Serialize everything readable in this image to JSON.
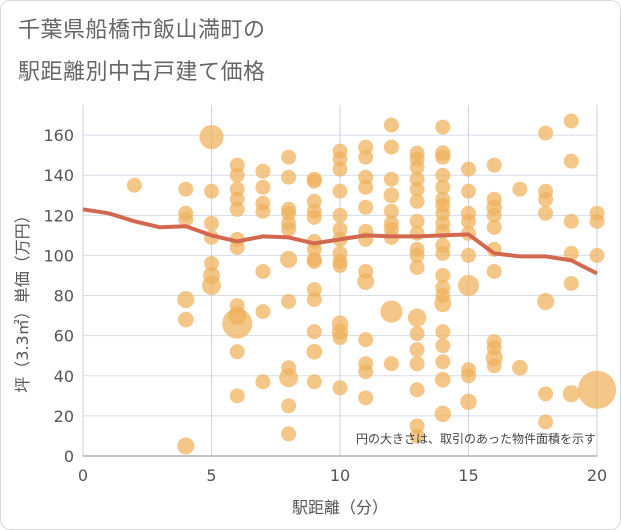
{
  "title_line1": "千葉県船橋市飯山満町の",
  "title_line2": "駅距離別中古戸建て価格",
  "chart_data": {
    "type": "scatter",
    "title": "千葉県船橋市飯山満町の駅距離別中古戸建て価格",
    "xlabel": "駅距離（分）",
    "ylabel": "坪（3.3㎡）単価（万円）",
    "xlim": [
      0,
      20
    ],
    "ylim": [
      0,
      175
    ],
    "xticks": [
      0,
      5,
      10,
      15,
      20
    ],
    "yticks": [
      0,
      20,
      40,
      60,
      80,
      100,
      120,
      140,
      160
    ],
    "grid": true,
    "note": "円の大きさは、取引のあった物件面積を示す",
    "bubble_color": "#f0b25c",
    "trend_color": "#d2694f",
    "points": [
      {
        "x": 2,
        "y": 135,
        "s": 1
      },
      {
        "x": 4,
        "y": 133,
        "s": 1
      },
      {
        "x": 4,
        "y": 121,
        "s": 1
      },
      {
        "x": 4,
        "y": 118,
        "s": 1
      },
      {
        "x": 4,
        "y": 78,
        "s": 1.3
      },
      {
        "x": 4,
        "y": 68,
        "s": 1.1
      },
      {
        "x": 4,
        "y": 5,
        "s": 1.3
      },
      {
        "x": 5,
        "y": 159,
        "s": 2.6
      },
      {
        "x": 5,
        "y": 132,
        "s": 1
      },
      {
        "x": 5,
        "y": 116,
        "s": 1
      },
      {
        "x": 5,
        "y": 109,
        "s": 1
      },
      {
        "x": 5,
        "y": 96,
        "s": 1
      },
      {
        "x": 5,
        "y": 90,
        "s": 1.3
      },
      {
        "x": 5,
        "y": 85,
        "s": 1.6
      },
      {
        "x": 6,
        "y": 145,
        "s": 1
      },
      {
        "x": 6,
        "y": 140,
        "s": 1
      },
      {
        "x": 6,
        "y": 133,
        "s": 1
      },
      {
        "x": 6,
        "y": 128,
        "s": 1
      },
      {
        "x": 6,
        "y": 123,
        "s": 1
      },
      {
        "x": 6,
        "y": 108,
        "s": 1
      },
      {
        "x": 6,
        "y": 104,
        "s": 1
      },
      {
        "x": 6,
        "y": 75,
        "s": 1
      },
      {
        "x": 6,
        "y": 70,
        "s": 1.5
      },
      {
        "x": 6,
        "y": 66,
        "s": 4.0
      },
      {
        "x": 6,
        "y": 52,
        "s": 1
      },
      {
        "x": 6,
        "y": 30,
        "s": 1
      },
      {
        "x": 7,
        "y": 142,
        "s": 1
      },
      {
        "x": 7,
        "y": 134,
        "s": 1
      },
      {
        "x": 7,
        "y": 126,
        "s": 1
      },
      {
        "x": 7,
        "y": 122,
        "s": 1
      },
      {
        "x": 7,
        "y": 92,
        "s": 1
      },
      {
        "x": 7,
        "y": 72,
        "s": 1
      },
      {
        "x": 7,
        "y": 37,
        "s": 1
      },
      {
        "x": 8,
        "y": 149,
        "s": 1
      },
      {
        "x": 8,
        "y": 139,
        "s": 1
      },
      {
        "x": 8,
        "y": 123,
        "s": 1
      },
      {
        "x": 8,
        "y": 121,
        "s": 1
      },
      {
        "x": 8,
        "y": 116,
        "s": 1
      },
      {
        "x": 8,
        "y": 113,
        "s": 1
      },
      {
        "x": 8,
        "y": 98,
        "s": 1.3
      },
      {
        "x": 8,
        "y": 77,
        "s": 1
      },
      {
        "x": 8,
        "y": 44,
        "s": 1
      },
      {
        "x": 8,
        "y": 39,
        "s": 1.6
      },
      {
        "x": 8,
        "y": 25,
        "s": 1
      },
      {
        "x": 8,
        "y": 11,
        "s": 1
      },
      {
        "x": 9,
        "y": 138,
        "s": 1
      },
      {
        "x": 9,
        "y": 137,
        "s": 1
      },
      {
        "x": 9,
        "y": 127,
        "s": 1
      },
      {
        "x": 9,
        "y": 122,
        "s": 1
      },
      {
        "x": 9,
        "y": 119,
        "s": 1
      },
      {
        "x": 9,
        "y": 107,
        "s": 1
      },
      {
        "x": 9,
        "y": 103,
        "s": 1
      },
      {
        "x": 9,
        "y": 98,
        "s": 1
      },
      {
        "x": 9,
        "y": 97,
        "s": 1
      },
      {
        "x": 9,
        "y": 83,
        "s": 1
      },
      {
        "x": 9,
        "y": 78,
        "s": 1
      },
      {
        "x": 9,
        "y": 62,
        "s": 1
      },
      {
        "x": 9,
        "y": 52,
        "s": 1.1
      },
      {
        "x": 9,
        "y": 37,
        "s": 1
      },
      {
        "x": 10,
        "y": 152,
        "s": 1
      },
      {
        "x": 10,
        "y": 148,
        "s": 1
      },
      {
        "x": 10,
        "y": 143,
        "s": 1
      },
      {
        "x": 10,
        "y": 132,
        "s": 1
      },
      {
        "x": 10,
        "y": 120,
        "s": 1
      },
      {
        "x": 10,
        "y": 113,
        "s": 1
      },
      {
        "x": 10,
        "y": 108,
        "s": 1
      },
      {
        "x": 10,
        "y": 101,
        "s": 1
      },
      {
        "x": 10,
        "y": 97,
        "s": 1
      },
      {
        "x": 10,
        "y": 95,
        "s": 1
      },
      {
        "x": 10,
        "y": 66,
        "s": 1.2
      },
      {
        "x": 10,
        "y": 62,
        "s": 1.2
      },
      {
        "x": 10,
        "y": 59,
        "s": 1
      },
      {
        "x": 10,
        "y": 34,
        "s": 1
      },
      {
        "x": 11,
        "y": 154,
        "s": 1
      },
      {
        "x": 11,
        "y": 149,
        "s": 1
      },
      {
        "x": 11,
        "y": 139,
        "s": 1
      },
      {
        "x": 11,
        "y": 134,
        "s": 1
      },
      {
        "x": 11,
        "y": 124,
        "s": 1
      },
      {
        "x": 11,
        "y": 112,
        "s": 1
      },
      {
        "x": 11,
        "y": 108,
        "s": 1
      },
      {
        "x": 11,
        "y": 92,
        "s": 1
      },
      {
        "x": 11,
        "y": 87,
        "s": 1.3
      },
      {
        "x": 11,
        "y": 58,
        "s": 1
      },
      {
        "x": 11,
        "y": 46,
        "s": 1
      },
      {
        "x": 11,
        "y": 42,
        "s": 1
      },
      {
        "x": 11,
        "y": 29,
        "s": 1
      },
      {
        "x": 12,
        "y": 165,
        "s": 1
      },
      {
        "x": 12,
        "y": 154,
        "s": 1
      },
      {
        "x": 12,
        "y": 138,
        "s": 1
      },
      {
        "x": 12,
        "y": 130,
        "s": 1.1
      },
      {
        "x": 12,
        "y": 122,
        "s": 1
      },
      {
        "x": 12,
        "y": 116,
        "s": 1
      },
      {
        "x": 12,
        "y": 113,
        "s": 1
      },
      {
        "x": 12,
        "y": 109,
        "s": 1
      },
      {
        "x": 12,
        "y": 72,
        "s": 2.2
      },
      {
        "x": 12,
        "y": 46,
        "s": 1
      },
      {
        "x": 13,
        "y": 151,
        "s": 1
      },
      {
        "x": 13,
        "y": 148,
        "s": 1
      },
      {
        "x": 13,
        "y": 144,
        "s": 1
      },
      {
        "x": 13,
        "y": 138,
        "s": 1
      },
      {
        "x": 13,
        "y": 133,
        "s": 1
      },
      {
        "x": 13,
        "y": 127,
        "s": 1
      },
      {
        "x": 13,
        "y": 117,
        "s": 1
      },
      {
        "x": 13,
        "y": 111,
        "s": 1
      },
      {
        "x": 13,
        "y": 103,
        "s": 1
      },
      {
        "x": 13,
        "y": 100,
        "s": 1
      },
      {
        "x": 13,
        "y": 94,
        "s": 1
      },
      {
        "x": 13,
        "y": 69,
        "s": 1.5
      },
      {
        "x": 13,
        "y": 61,
        "s": 1
      },
      {
        "x": 13,
        "y": 53,
        "s": 1
      },
      {
        "x": 13,
        "y": 46,
        "s": 1
      },
      {
        "x": 13,
        "y": 33,
        "s": 1
      },
      {
        "x": 13,
        "y": 15,
        "s": 1
      },
      {
        "x": 13,
        "y": 10,
        "s": 1
      },
      {
        "x": 14,
        "y": 164,
        "s": 1
      },
      {
        "x": 14,
        "y": 151,
        "s": 1.1
      },
      {
        "x": 14,
        "y": 149,
        "s": 1
      },
      {
        "x": 14,
        "y": 140,
        "s": 1
      },
      {
        "x": 14,
        "y": 134,
        "s": 1
      },
      {
        "x": 14,
        "y": 128,
        "s": 1
      },
      {
        "x": 14,
        "y": 125,
        "s": 1
      },
      {
        "x": 14,
        "y": 121,
        "s": 1
      },
      {
        "x": 14,
        "y": 116,
        "s": 1
      },
      {
        "x": 14,
        "y": 112,
        "s": 1
      },
      {
        "x": 14,
        "y": 105,
        "s": 1
      },
      {
        "x": 14,
        "y": 101,
        "s": 1
      },
      {
        "x": 14,
        "y": 90,
        "s": 1
      },
      {
        "x": 14,
        "y": 84,
        "s": 1
      },
      {
        "x": 14,
        "y": 80,
        "s": 1
      },
      {
        "x": 14,
        "y": 76,
        "s": 1.3
      },
      {
        "x": 14,
        "y": 62,
        "s": 1
      },
      {
        "x": 14,
        "y": 55,
        "s": 1
      },
      {
        "x": 14,
        "y": 47,
        "s": 1
      },
      {
        "x": 14,
        "y": 38,
        "s": 1.1
      },
      {
        "x": 14,
        "y": 21,
        "s": 1.2
      },
      {
        "x": 15,
        "y": 143,
        "s": 1
      },
      {
        "x": 15,
        "y": 132,
        "s": 1
      },
      {
        "x": 15,
        "y": 121,
        "s": 1
      },
      {
        "x": 15,
        "y": 117,
        "s": 1
      },
      {
        "x": 15,
        "y": 111,
        "s": 1
      },
      {
        "x": 15,
        "y": 100,
        "s": 1
      },
      {
        "x": 15,
        "y": 85,
        "s": 2.0
      },
      {
        "x": 15,
        "y": 43,
        "s": 1
      },
      {
        "x": 15,
        "y": 40,
        "s": 1
      },
      {
        "x": 15,
        "y": 27,
        "s": 1.2
      },
      {
        "x": 16,
        "y": 145,
        "s": 1
      },
      {
        "x": 16,
        "y": 128,
        "s": 1
      },
      {
        "x": 16,
        "y": 124,
        "s": 1.1
      },
      {
        "x": 16,
        "y": 120,
        "s": 1
      },
      {
        "x": 16,
        "y": 114,
        "s": 1
      },
      {
        "x": 16,
        "y": 103,
        "s": 1
      },
      {
        "x": 16,
        "y": 92,
        "s": 1
      },
      {
        "x": 16,
        "y": 57,
        "s": 1
      },
      {
        "x": 16,
        "y": 54,
        "s": 1
      },
      {
        "x": 16,
        "y": 49,
        "s": 1.3
      },
      {
        "x": 16,
        "y": 45,
        "s": 1
      },
      {
        "x": 17,
        "y": 133,
        "s": 1
      },
      {
        "x": 17,
        "y": 44,
        "s": 1.1
      },
      {
        "x": 18,
        "y": 161,
        "s": 1
      },
      {
        "x": 18,
        "y": 132,
        "s": 1
      },
      {
        "x": 18,
        "y": 128,
        "s": 1
      },
      {
        "x": 18,
        "y": 121,
        "s": 1
      },
      {
        "x": 18,
        "y": 77,
        "s": 1.3
      },
      {
        "x": 18,
        "y": 31,
        "s": 1
      },
      {
        "x": 18,
        "y": 17,
        "s": 1
      },
      {
        "x": 19,
        "y": 167,
        "s": 1
      },
      {
        "x": 19,
        "y": 147,
        "s": 1
      },
      {
        "x": 19,
        "y": 117,
        "s": 1
      },
      {
        "x": 19,
        "y": 101,
        "s": 1
      },
      {
        "x": 19,
        "y": 86,
        "s": 1
      },
      {
        "x": 19,
        "y": 31,
        "s": 1.3
      },
      {
        "x": 20,
        "y": 121,
        "s": 1
      },
      {
        "x": 20,
        "y": 117,
        "s": 1
      },
      {
        "x": 20,
        "y": 100,
        "s": 1
      },
      {
        "x": 20,
        "y": 33,
        "s": 6.5
      }
    ],
    "trend": {
      "x": [
        0,
        1,
        2,
        3,
        4,
        5,
        6,
        7,
        8,
        9,
        10,
        11,
        12,
        13,
        14,
        15,
        16,
        17,
        18,
        19,
        20
      ],
      "y": [
        123,
        121,
        117,
        114,
        114.5,
        110,
        107,
        109.5,
        109,
        106,
        108,
        110,
        109.5,
        109.5,
        110,
        110.5,
        101,
        99.5,
        99.5,
        97.5,
        91
      ]
    }
  }
}
